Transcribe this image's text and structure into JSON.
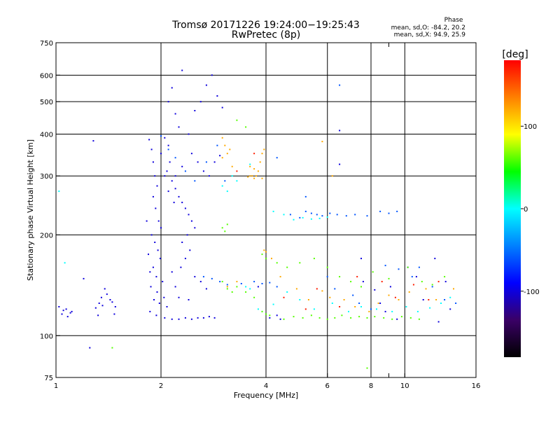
{
  "chart_data": {
    "type": "scatter",
    "title": "Tromsø 20171226 19:24:00−19:25:43",
    "subtitle": "RwPretec (8p)",
    "xlabel": "Frequency [MHz]",
    "ylabel": "Stationary phase Virtual Height [km]",
    "x_scale": "log",
    "y_scale": "log",
    "xlim": [
      1,
      16
    ],
    "ylim": [
      75,
      750
    ],
    "x_ticks": [
      1,
      2,
      4,
      6,
      8,
      10,
      16
    ],
    "x_minor_ticks": [
      9
    ],
    "y_ticks": [
      75,
      100,
      200,
      300,
      400,
      500,
      600,
      750
    ],
    "x_gridlines": [
      2,
      4,
      6,
      8,
      10
    ],
    "y_gridlines": [
      100,
      200,
      300,
      400,
      500,
      600
    ],
    "grid": true,
    "stats": {
      "header": "Phase",
      "line1": "mean, sd,O: -84.2, 20.2",
      "line2": "mean, sd,X:  94.9, 25.9"
    },
    "colorbar": {
      "label": "[deg]",
      "ticks": [
        100,
        0,
        -100
      ],
      "range": [
        -180,
        180
      ],
      "colors": [
        "#000000",
        "#3a0066",
        "#0000ff",
        "#0080ff",
        "#00ffff",
        "#00ff00",
        "#ffff00",
        "#ff8000",
        "#ff0000"
      ]
    },
    "series": [
      {
        "phase": -100,
        "points": [
          [
            1.02,
            122
          ],
          [
            1.05,
            119
          ],
          [
            1.07,
            120
          ],
          [
            1.1,
            117
          ],
          [
            1.04,
            116
          ],
          [
            1.08,
            114
          ],
          [
            1.11,
            118
          ],
          [
            1.33,
            125
          ],
          [
            1.35,
            130
          ],
          [
            1.38,
            138
          ],
          [
            1.4,
            133
          ],
          [
            1.43,
            128
          ],
          [
            1.36,
            123
          ],
          [
            1.3,
            121
          ],
          [
            1.45,
            126
          ],
          [
            1.48,
            122
          ],
          [
            1.32,
            115
          ],
          [
            1.47,
            116
          ],
          [
            1.25,
            92
          ],
          [
            1.28,
            382
          ],
          [
            1.2,
            148
          ]
        ]
      },
      {
        "phase": -100,
        "points": [
          [
            1.85,
            385
          ],
          [
            1.88,
            360
          ],
          [
            1.9,
            330
          ],
          [
            1.92,
            300
          ],
          [
            1.95,
            280
          ],
          [
            1.9,
            260
          ],
          [
            1.93,
            240
          ],
          [
            1.97,
            220
          ],
          [
            2.0,
            210
          ],
          [
            1.88,
            200
          ],
          [
            1.92,
            190
          ],
          [
            1.96,
            180
          ],
          [
            1.99,
            170
          ],
          [
            1.9,
            160
          ],
          [
            1.94,
            150
          ],
          [
            2.02,
            145
          ],
          [
            1.87,
            140
          ],
          [
            1.95,
            135
          ],
          [
            2.04,
            130
          ],
          [
            1.91,
            128
          ],
          [
            1.98,
            125
          ],
          [
            2.08,
            122
          ],
          [
            1.86,
            118
          ],
          [
            1.94,
            115
          ],
          [
            2.05,
            113
          ],
          [
            2.15,
            112
          ],
          [
            2.25,
            112
          ],
          [
            2.35,
            113
          ],
          [
            2.45,
            112
          ],
          [
            2.55,
            113
          ],
          [
            2.65,
            113
          ],
          [
            2.75,
            114
          ],
          [
            2.85,
            113
          ],
          [
            2.05,
            390
          ],
          [
            2.1,
            370
          ],
          [
            2.0,
            350
          ],
          [
            2.12,
            330
          ],
          [
            2.08,
            310
          ],
          [
            2.15,
            290
          ],
          [
            2.2,
            275
          ],
          [
            2.25,
            260
          ],
          [
            2.3,
            250
          ],
          [
            2.35,
            240
          ],
          [
            2.4,
            230
          ],
          [
            2.45,
            220
          ],
          [
            2.5,
            210
          ],
          [
            2.38,
            200
          ],
          [
            2.3,
            190
          ],
          [
            2.42,
            180
          ],
          [
            2.35,
            170
          ],
          [
            2.28,
            160
          ],
          [
            2.15,
            155
          ],
          [
            2.5,
            150
          ],
          [
            2.6,
            145
          ],
          [
            2.2,
            140
          ],
          [
            2.7,
            138
          ],
          [
            2.1,
            500
          ],
          [
            2.15,
            550
          ],
          [
            2.3,
            620
          ],
          [
            2.2,
            460
          ],
          [
            2.25,
            420
          ],
          [
            2.4,
            400
          ],
          [
            2.5,
            470
          ],
          [
            2.6,
            500
          ],
          [
            2.7,
            560
          ],
          [
            2.8,
            600
          ],
          [
            2.9,
            520
          ],
          [
            3.0,
            480
          ],
          [
            2.45,
            350
          ],
          [
            2.55,
            330
          ],
          [
            2.65,
            310
          ],
          [
            2.75,
            300
          ],
          [
            2.85,
            330
          ],
          [
            2.95,
            345
          ],
          [
            2.2,
            300
          ],
          [
            2.3,
            320
          ],
          [
            2.05,
            300
          ],
          [
            2.1,
            270
          ],
          [
            2.18,
            250
          ],
          [
            1.82,
            220
          ],
          [
            1.84,
            175
          ],
          [
            1.86,
            155
          ],
          [
            2.25,
            130
          ],
          [
            2.4,
            128
          ],
          [
            3.8,
            140
          ],
          [
            4.1,
            113
          ],
          [
            4.3,
            115
          ],
          [
            4.4,
            112
          ],
          [
            6.5,
            410
          ],
          [
            6.5,
            325
          ],
          [
            7.5,
            170
          ],
          [
            7.6,
            145
          ],
          [
            8.2,
            137
          ],
          [
            8.5,
            125
          ],
          [
            8.8,
            118
          ],
          [
            9.1,
            140
          ],
          [
            9.5,
            112
          ],
          [
            10.2,
            160
          ],
          [
            10.8,
            150
          ],
          [
            11.3,
            128
          ],
          [
            12.2,
            170
          ],
          [
            12.5,
            110
          ],
          [
            13.1,
            145
          ],
          [
            13.5,
            120
          ]
        ]
      },
      {
        "phase": -60,
        "points": [
          [
            2.0,
            395
          ],
          [
            2.1,
            360
          ],
          [
            2.2,
            340
          ],
          [
            2.35,
            310
          ],
          [
            2.5,
            290
          ],
          [
            2.7,
            330
          ],
          [
            2.9,
            370
          ],
          [
            3.05,
            290
          ],
          [
            2.65,
            150
          ],
          [
            2.8,
            148
          ],
          [
            2.95,
            145
          ],
          [
            3.1,
            142
          ],
          [
            3.4,
            143
          ],
          [
            3.7,
            145
          ],
          [
            3.9,
            143
          ],
          [
            4.1,
            144
          ],
          [
            4.3,
            140
          ],
          [
            4.7,
            230
          ],
          [
            5.0,
            225
          ],
          [
            5.2,
            235
          ],
          [
            5.4,
            232
          ],
          [
            5.6,
            230
          ],
          [
            5.8,
            228
          ],
          [
            6.1,
            232
          ],
          [
            6.4,
            230
          ],
          [
            6.8,
            228
          ],
          [
            7.2,
            230
          ],
          [
            7.8,
            228
          ],
          [
            8.5,
            235
          ],
          [
            9.0,
            232
          ],
          [
            9.5,
            235
          ],
          [
            6.5,
            560
          ],
          [
            4.3,
            340
          ],
          [
            5.2,
            260
          ],
          [
            6.0,
            150
          ],
          [
            6.3,
            138
          ],
          [
            7.1,
            132
          ],
          [
            7.4,
            125
          ],
          [
            8.0,
            120
          ],
          [
            8.8,
            162
          ],
          [
            9.6,
            158
          ],
          [
            10.5,
            150
          ],
          [
            11.0,
            160
          ],
          [
            12.0,
            140
          ],
          [
            13.0,
            128
          ],
          [
            14.0,
            125
          ]
        ]
      },
      {
        "phase": 0,
        "points": [
          [
            3.0,
            280
          ],
          [
            3.1,
            270
          ],
          [
            3.2,
            300
          ],
          [
            3.3,
            290
          ],
          [
            3.6,
            325
          ],
          [
            4.2,
            235
          ],
          [
            4.5,
            230
          ],
          [
            4.8,
            222
          ],
          [
            5.1,
            225
          ],
          [
            5.4,
            223
          ],
          [
            5.7,
            224
          ],
          [
            6.0,
            226
          ],
          [
            3.5,
            140
          ],
          [
            3.6,
            138
          ],
          [
            3.8,
            120
          ],
          [
            3.9,
            118
          ],
          [
            4.2,
            124
          ],
          [
            4.6,
            135
          ],
          [
            5.0,
            128
          ],
          [
            5.5,
            120
          ],
          [
            6.2,
            125
          ],
          [
            6.9,
            118
          ],
          [
            7.5,
            122
          ],
          [
            8.3,
            120
          ],
          [
            9.2,
            118
          ],
          [
            10.1,
            122
          ],
          [
            10.9,
            118
          ],
          [
            11.8,
            121
          ],
          [
            12.7,
            125
          ],
          [
            13.5,
            130
          ],
          [
            1.02,
            270
          ],
          [
            1.06,
            165
          ]
        ]
      },
      {
        "phase": 60,
        "points": [
          [
            3.0,
            145
          ],
          [
            3.1,
            138
          ],
          [
            3.2,
            135
          ],
          [
            3.3,
            140
          ],
          [
            3.5,
            135
          ],
          [
            3.7,
            130
          ],
          [
            3.9,
            118
          ],
          [
            4.0,
            116
          ],
          [
            4.1,
            115
          ],
          [
            4.5,
            112
          ],
          [
            4.8,
            114
          ],
          [
            5.1,
            113
          ],
          [
            5.4,
            115
          ],
          [
            5.7,
            113
          ],
          [
            6.0,
            112
          ],
          [
            6.3,
            113
          ],
          [
            6.6,
            115
          ],
          [
            7.0,
            113
          ],
          [
            7.4,
            114
          ],
          [
            7.8,
            113
          ],
          [
            8.2,
            114
          ],
          [
            8.7,
            113
          ],
          [
            9.2,
            112
          ],
          [
            9.8,
            114
          ],
          [
            10.4,
            113
          ],
          [
            11.0,
            112
          ],
          [
            3.0,
            210
          ],
          [
            3.05,
            205
          ],
          [
            3.1,
            215
          ],
          [
            3.9,
            175
          ],
          [
            4.0,
            170
          ],
          [
            4.3,
            165
          ],
          [
            4.6,
            160
          ],
          [
            5.0,
            165
          ],
          [
            5.5,
            170
          ],
          [
            6.0,
            160
          ],
          [
            6.5,
            150
          ],
          [
            7.0,
            145
          ],
          [
            7.5,
            140
          ],
          [
            8.1,
            155
          ],
          [
            9.0,
            148
          ],
          [
            10.2,
            160
          ],
          [
            11.2,
            145
          ],
          [
            12.0,
            142
          ],
          [
            13.0,
            150
          ],
          [
            1.45,
            92
          ],
          [
            7.8,
            80
          ],
          [
            3.3,
            440
          ],
          [
            3.5,
            420
          ]
        ]
      },
      {
        "phase": 120,
        "points": [
          [
            3.0,
            390
          ],
          [
            3.05,
            370
          ],
          [
            3.1,
            350
          ],
          [
            3.15,
            360
          ],
          [
            3.2,
            320
          ],
          [
            3.0,
            340
          ],
          [
            3.6,
            320
          ],
          [
            3.65,
            300
          ],
          [
            3.7,
            295
          ],
          [
            3.75,
            300
          ],
          [
            3.8,
            310
          ],
          [
            3.85,
            330
          ],
          [
            3.9,
            350
          ],
          [
            3.95,
            360
          ],
          [
            3.7,
            315
          ],
          [
            3.6,
            300
          ],
          [
            3.55,
            298
          ],
          [
            3.9,
            295
          ],
          [
            3.95,
            180
          ],
          [
            4.0,
            178
          ],
          [
            4.15,
            170
          ],
          [
            3.1,
            140
          ],
          [
            3.3,
            145
          ],
          [
            4.4,
            150
          ],
          [
            4.9,
            138
          ],
          [
            5.3,
            128
          ],
          [
            5.8,
            136
          ],
          [
            6.1,
            130
          ],
          [
            6.7,
            128
          ],
          [
            7.2,
            122
          ],
          [
            7.9,
            118
          ],
          [
            8.4,
            125
          ],
          [
            9.0,
            132
          ],
          [
            9.6,
            128
          ],
          [
            10.3,
            135
          ],
          [
            11.5,
            138
          ],
          [
            12.3,
            128
          ],
          [
            13.8,
            138
          ],
          [
            5.8,
            380
          ],
          [
            6.2,
            300
          ]
        ]
      },
      {
        "phase": 170,
        "points": [
          [
            3.3,
            310
          ],
          [
            3.7,
            350
          ],
          [
            4.5,
            130
          ],
          [
            5.2,
            120
          ],
          [
            5.6,
            138
          ],
          [
            6.5,
            122
          ],
          [
            7.3,
            150
          ],
          [
            8.6,
            145
          ],
          [
            9.4,
            130
          ],
          [
            10.6,
            142
          ],
          [
            11.7,
            128
          ],
          [
            12.5,
            145
          ]
        ]
      }
    ]
  }
}
